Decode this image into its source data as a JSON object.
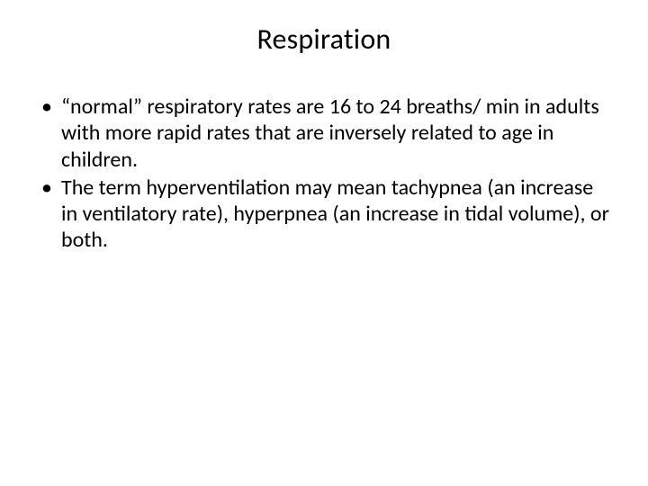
{
  "slide": {
    "title": "Respiration",
    "bullets": [
      "“normal” respiratory rates are 16 to 24 breaths/ min in adults with more rapid rates that are inversely related to age in children.",
      " The term  hyperventilation  may mean tachypnea (an increase in ventilatory rate), hyperpnea (an increase in tidal volume), or both."
    ]
  },
  "style": {
    "background_color": "#ffffff",
    "text_color": "#000000",
    "title_fontsize": 32,
    "body_fontsize": 24,
    "font_family": "Calibri"
  }
}
